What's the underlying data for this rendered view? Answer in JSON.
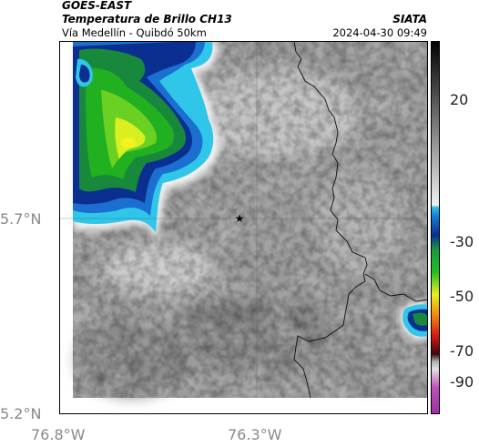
{
  "header": {
    "satellite": "GOES-EAST",
    "product": "Temperatura de Brillo CH13",
    "route": "Vía Medellín - Quibdó 50km",
    "source": "SIATA",
    "datetime": "2024-04-30 09:49"
  },
  "map": {
    "y_ticks": [
      "5.7°N",
      "5.2°N"
    ],
    "x_ticks": [
      "76.8°W",
      "76.3°W"
    ],
    "marker": "star-icon"
  },
  "colorbar": {
    "ticks": [
      "20",
      "-30",
      "-50",
      "-70",
      "-90"
    ],
    "colors": {
      "black": "#000000",
      "gray_light": "#f0f0f0",
      "cyan": "#2ec4e8",
      "blue": "#0a3fa8",
      "green": "#22b824",
      "yellow": "#e8f020",
      "red": "#d81818",
      "magenta": "#c050b8"
    }
  }
}
